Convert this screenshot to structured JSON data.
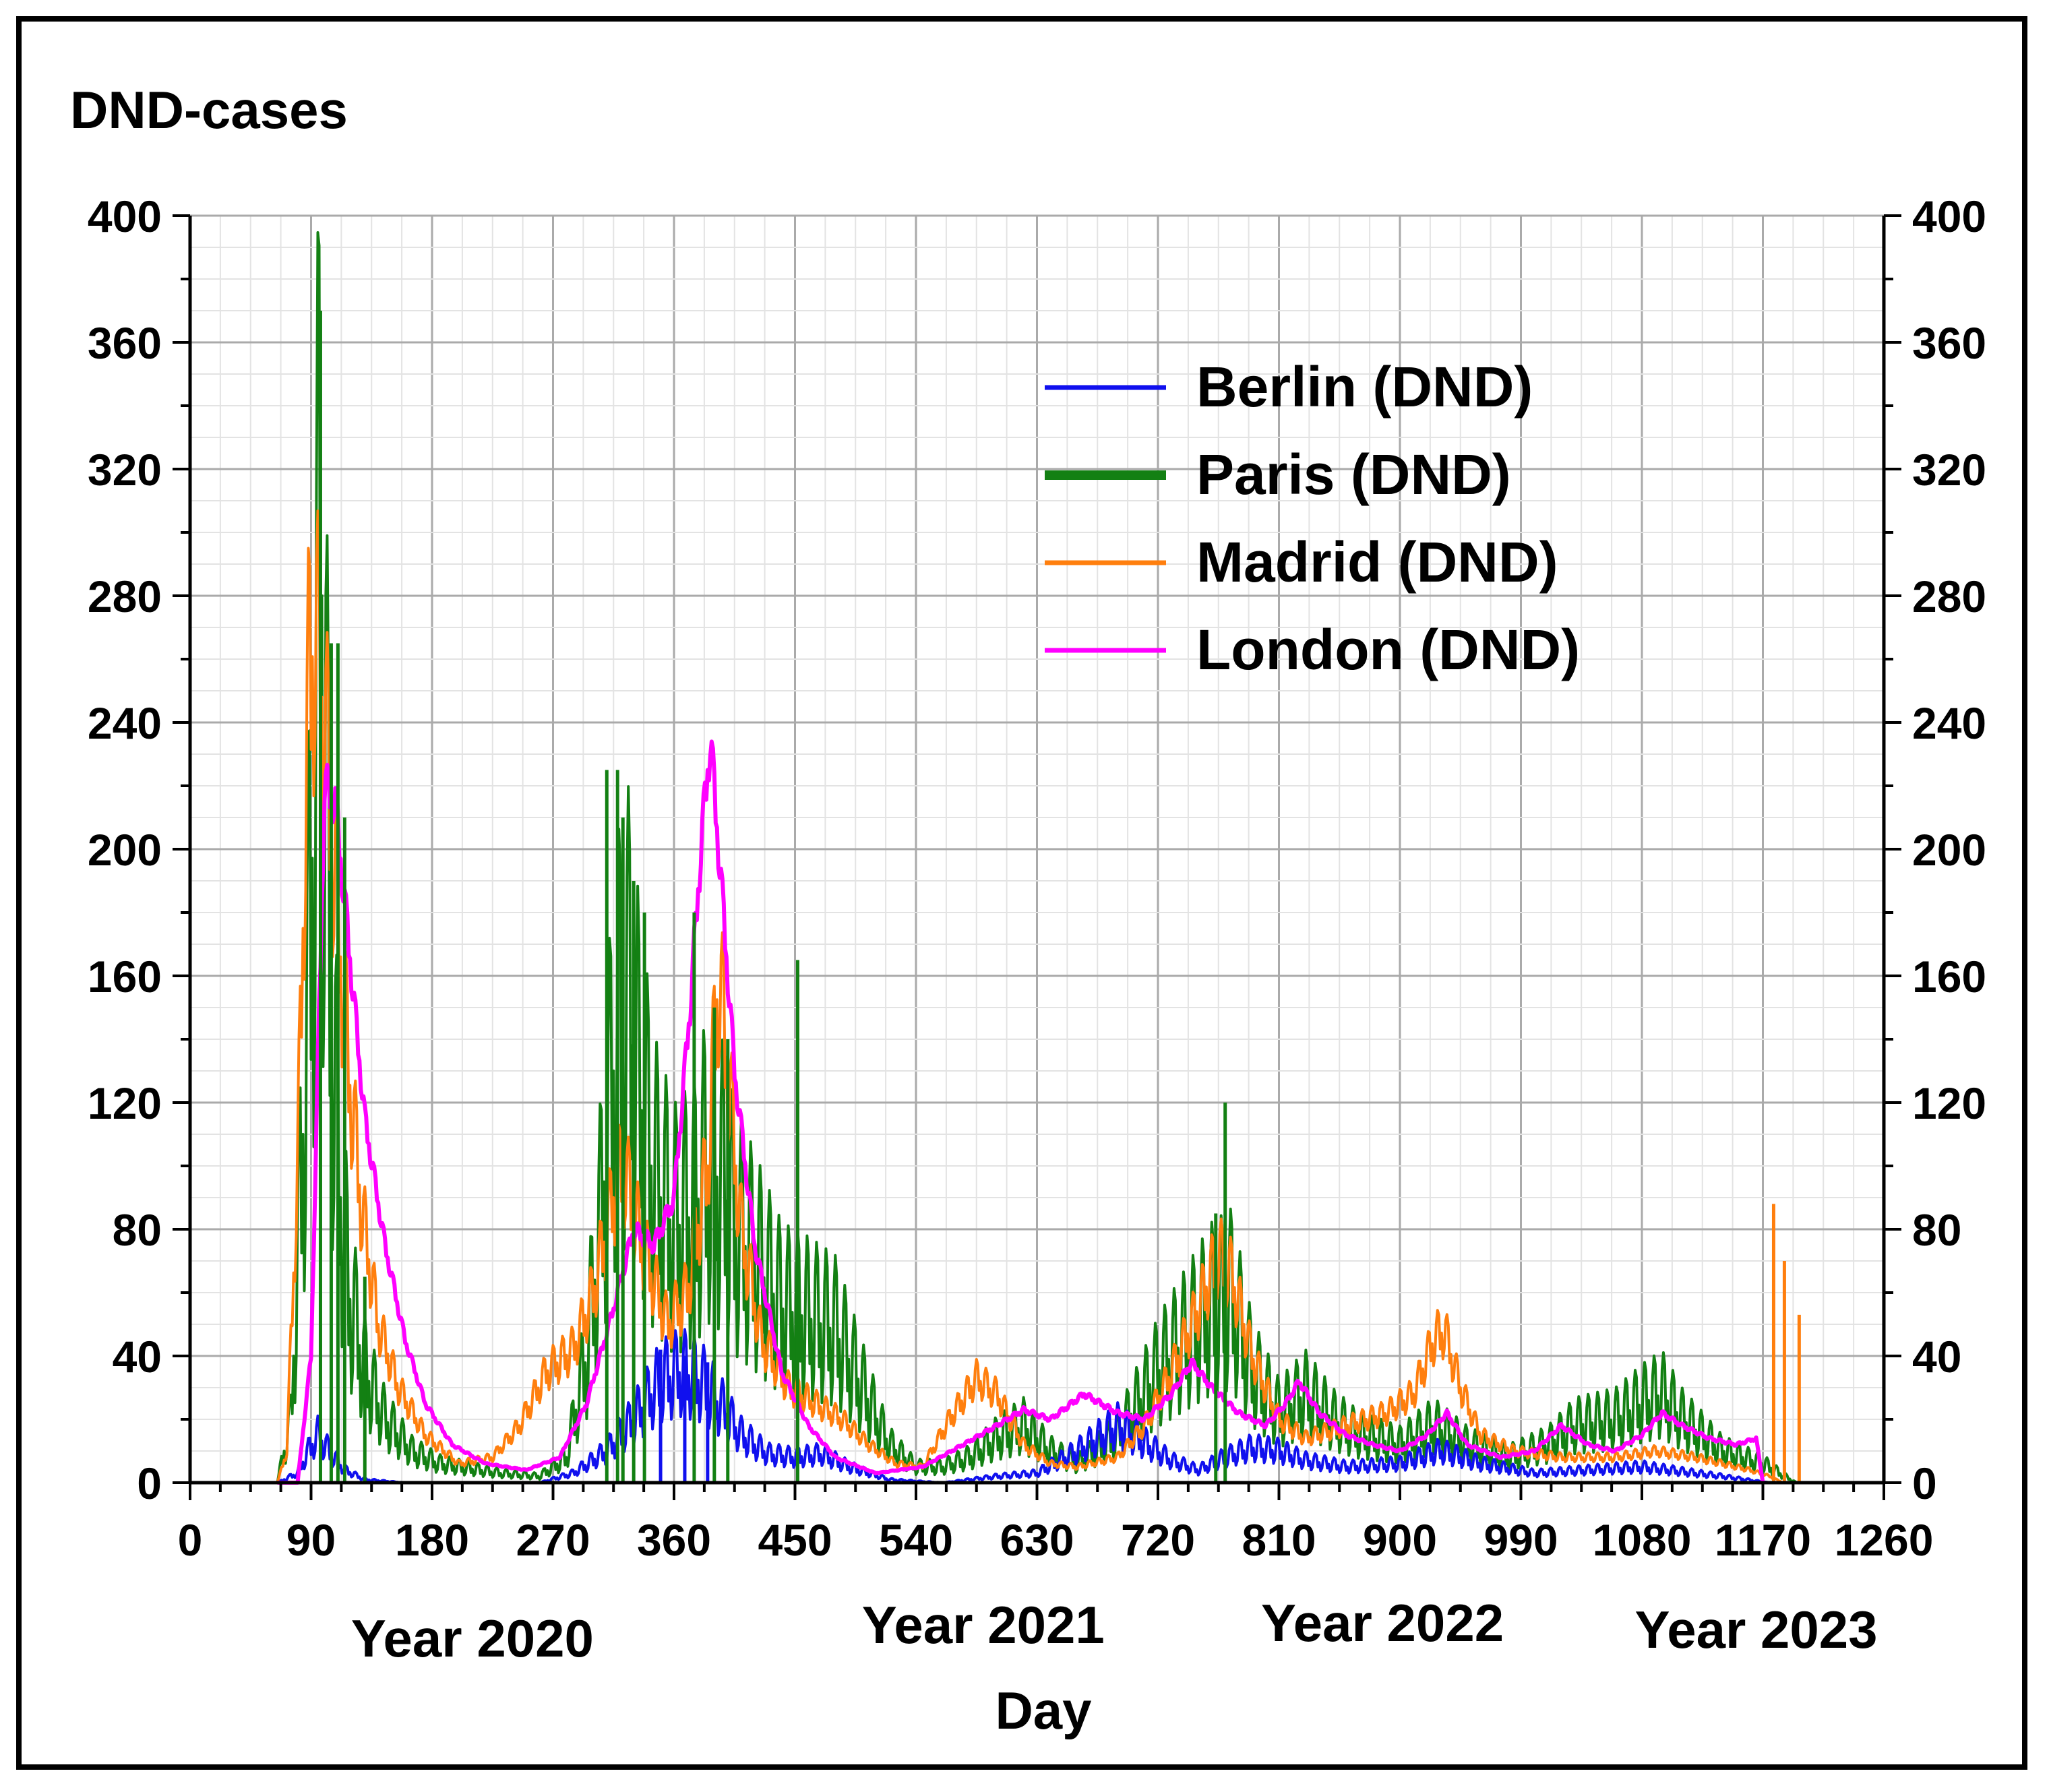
{
  "chart_data": {
    "type": "line",
    "title": "DND-cases",
    "xlabel": "Day",
    "ylabel": "",
    "xlim": [
      0,
      1260
    ],
    "ylim": [
      0,
      400
    ],
    "x_ticks": [
      0,
      90,
      180,
      270,
      360,
      450,
      540,
      630,
      720,
      810,
      900,
      990,
      1080,
      1170,
      1260
    ],
    "y_ticks": [
      0,
      40,
      80,
      120,
      160,
      200,
      240,
      280,
      320,
      360,
      400
    ],
    "grid": true,
    "legend_position": "top-right",
    "year_labels": [
      {
        "text": "Year 2020",
        "day": 210
      },
      {
        "text": "Year 2021",
        "day": 590
      },
      {
        "text": "Year 2022",
        "day": 887
      },
      {
        "text": "Year 2023",
        "day": 1165
      }
    ],
    "series": [
      {
        "name": "Berlin (DND)",
        "color": "#1010ee",
        "oscillation": 0.45,
        "points": [
          [
            65,
            0
          ],
          [
            80,
            3
          ],
          [
            88,
            10
          ],
          [
            95,
            15
          ],
          [
            105,
            9
          ],
          [
            115,
            4
          ],
          [
            130,
            1
          ],
          [
            160,
            0
          ],
          [
            200,
            0
          ],
          [
            260,
            0
          ],
          [
            285,
            3
          ],
          [
            310,
            10
          ],
          [
            330,
            20
          ],
          [
            350,
            32
          ],
          [
            365,
            35
          ],
          [
            380,
            32
          ],
          [
            395,
            24
          ],
          [
            410,
            15
          ],
          [
            430,
            9
          ],
          [
            450,
            8
          ],
          [
            470,
            9
          ],
          [
            490,
            5
          ],
          [
            520,
            1
          ],
          [
            560,
            0
          ],
          [
            600,
            2
          ],
          [
            630,
            3
          ],
          [
            660,
            10
          ],
          [
            690,
            18
          ],
          [
            705,
            14
          ],
          [
            730,
            7
          ],
          [
            750,
            4
          ],
          [
            770,
            8
          ],
          [
            790,
            11
          ],
          [
            810,
            10
          ],
          [
            830,
            7
          ],
          [
            860,
            5
          ],
          [
            900,
            6
          ],
          [
            930,
            10
          ],
          [
            960,
            6
          ],
          [
            1000,
            3
          ],
          [
            1040,
            4
          ],
          [
            1080,
            5
          ],
          [
            1100,
            4
          ],
          [
            1140,
            2
          ],
          [
            1175,
            0
          ],
          [
            1200,
            0
          ]
        ]
      },
      {
        "name": "Paris (DND)",
        "color": "#138013",
        "oscillation": 0.55,
        "points": [
          [
            65,
            0
          ],
          [
            75,
            20
          ],
          [
            85,
            120
          ],
          [
            92,
            210
          ],
          [
            97,
            300
          ],
          [
            103,
            180
          ],
          [
            110,
            100
          ],
          [
            118,
            60
          ],
          [
            130,
            35
          ],
          [
            145,
            20
          ],
          [
            165,
            10
          ],
          [
            185,
            6
          ],
          [
            200,
            5
          ],
          [
            230,
            3
          ],
          [
            260,
            2
          ],
          [
            280,
            8
          ],
          [
            295,
            40
          ],
          [
            305,
            80
          ],
          [
            315,
            130
          ],
          [
            325,
            150
          ],
          [
            335,
            120
          ],
          [
            345,
            95
          ],
          [
            360,
            80
          ],
          [
            375,
            85
          ],
          [
            385,
            100
          ],
          [
            395,
            95
          ],
          [
            405,
            80
          ],
          [
            420,
            70
          ],
          [
            440,
            55
          ],
          [
            460,
            52
          ],
          [
            480,
            48
          ],
          [
            500,
            30
          ],
          [
            520,
            12
          ],
          [
            540,
            5
          ],
          [
            560,
            5
          ],
          [
            580,
            8
          ],
          [
            600,
            14
          ],
          [
            620,
            18
          ],
          [
            640,
            10
          ],
          [
            660,
            6
          ],
          [
            690,
            15
          ],
          [
            720,
            35
          ],
          [
            740,
            45
          ],
          [
            760,
            55
          ],
          [
            775,
            58
          ],
          [
            790,
            35
          ],
          [
            810,
            22
          ],
          [
            830,
            28
          ],
          [
            850,
            20
          ],
          [
            870,
            15
          ],
          [
            900,
            12
          ],
          [
            925,
            18
          ],
          [
            950,
            12
          ],
          [
            980,
            8
          ],
          [
            1010,
            12
          ],
          [
            1030,
            18
          ],
          [
            1060,
            20
          ],
          [
            1080,
            25
          ],
          [
            1095,
            28
          ],
          [
            1110,
            20
          ],
          [
            1140,
            10
          ],
          [
            1170,
            6
          ],
          [
            1195,
            0
          ]
        ]
      },
      {
        "name": "Madrid (DND)",
        "color": "#ff7f0e",
        "oscillation": 0.2,
        "points": [
          [
            65,
            0
          ],
          [
            72,
            10
          ],
          [
            80,
            100
          ],
          [
            88,
            250
          ],
          [
            93,
            268
          ],
          [
            100,
            240
          ],
          [
            108,
            190
          ],
          [
            118,
            130
          ],
          [
            128,
            85
          ],
          [
            140,
            50
          ],
          [
            155,
            30
          ],
          [
            175,
            15
          ],
          [
            200,
            6
          ],
          [
            225,
            8
          ],
          [
            245,
            18
          ],
          [
            265,
            35
          ],
          [
            285,
            42
          ],
          [
            300,
            60
          ],
          [
            315,
            90
          ],
          [
            322,
            100
          ],
          [
            330,
            85
          ],
          [
            340,
            70
          ],
          [
            355,
            50
          ],
          [
            370,
            60
          ],
          [
            385,
            100
          ],
          [
            393,
            160
          ],
          [
            400,
            130
          ],
          [
            410,
            80
          ],
          [
            425,
            45
          ],
          [
            445,
            30
          ],
          [
            465,
            25
          ],
          [
            485,
            20
          ],
          [
            505,
            12
          ],
          [
            525,
            6
          ],
          [
            545,
            5
          ],
          [
            565,
            20
          ],
          [
            585,
            33
          ],
          [
            600,
            28
          ],
          [
            620,
            12
          ],
          [
            640,
            6
          ],
          [
            660,
            5
          ],
          [
            690,
            8
          ],
          [
            710,
            18
          ],
          [
            730,
            35
          ],
          [
            750,
            55
          ],
          [
            765,
            72
          ],
          [
            775,
            65
          ],
          [
            790,
            40
          ],
          [
            810,
            20
          ],
          [
            830,
            14
          ],
          [
            860,
            18
          ],
          [
            890,
            22
          ],
          [
            910,
            28
          ],
          [
            925,
            45
          ],
          [
            933,
            48
          ],
          [
            945,
            30
          ],
          [
            960,
            15
          ],
          [
            985,
            10
          ],
          [
            1020,
            8
          ],
          [
            1060,
            8
          ],
          [
            1090,
            10
          ],
          [
            1120,
            8
          ],
          [
            1160,
            4
          ],
          [
            1175,
            2
          ],
          [
            1185,
            0
          ]
        ]
      },
      {
        "name": "London (DND)",
        "color": "#ff00ff",
        "oscillation": 0.04,
        "points": [
          [
            65,
            0
          ],
          [
            80,
            0
          ],
          [
            90,
            40
          ],
          [
            100,
            220
          ],
          [
            108,
            215
          ],
          [
            118,
            170
          ],
          [
            130,
            115
          ],
          [
            145,
            75
          ],
          [
            160,
            45
          ],
          [
            175,
            25
          ],
          [
            195,
            12
          ],
          [
            220,
            6
          ],
          [
            250,
            4
          ],
          [
            275,
            8
          ],
          [
            295,
            25
          ],
          [
            315,
            55
          ],
          [
            330,
            80
          ],
          [
            345,
            75
          ],
          [
            360,
            90
          ],
          [
            372,
            150
          ],
          [
            380,
            200
          ],
          [
            387,
            235
          ],
          [
            395,
            190
          ],
          [
            405,
            130
          ],
          [
            420,
            75
          ],
          [
            440,
            35
          ],
          [
            460,
            18
          ],
          [
            480,
            8
          ],
          [
            510,
            3
          ],
          [
            545,
            5
          ],
          [
            575,
            12
          ],
          [
            600,
            18
          ],
          [
            620,
            23
          ],
          [
            640,
            20
          ],
          [
            665,
            28
          ],
          [
            690,
            22
          ],
          [
            710,
            20
          ],
          [
            730,
            28
          ],
          [
            745,
            38
          ],
          [
            760,
            30
          ],
          [
            780,
            22
          ],
          [
            800,
            18
          ],
          [
            815,
            25
          ],
          [
            825,
            32
          ],
          [
            840,
            22
          ],
          [
            860,
            15
          ],
          [
            880,
            12
          ],
          [
            900,
            10
          ],
          [
            920,
            15
          ],
          [
            935,
            22
          ],
          [
            950,
            12
          ],
          [
            975,
            8
          ],
          [
            1000,
            10
          ],
          [
            1020,
            18
          ],
          [
            1040,
            12
          ],
          [
            1060,
            10
          ],
          [
            1080,
            15
          ],
          [
            1095,
            22
          ],
          [
            1110,
            18
          ],
          [
            1130,
            14
          ],
          [
            1150,
            12
          ],
          [
            1165,
            14
          ],
          [
            1170,
            0
          ]
        ]
      }
    ],
    "spikes": [
      {
        "series": "Berlin (DND)",
        "points": [
          [
            350,
            42
          ],
          [
            368,
            40
          ],
          [
            385,
            38
          ]
        ]
      },
      {
        "series": "Paris (DND)",
        "points": [
          [
            97,
            370
          ],
          [
            105,
            265
          ],
          [
            110,
            265
          ],
          [
            115,
            210
          ],
          [
            130,
            65
          ],
          [
            310,
            225
          ],
          [
            318,
            225
          ],
          [
            322,
            210
          ],
          [
            330,
            190
          ],
          [
            338,
            180
          ],
          [
            375,
            180
          ],
          [
            390,
            150
          ],
          [
            400,
            140
          ],
          [
            452,
            165
          ],
          [
            770,
            120
          ],
          [
            763,
            85
          ]
        ]
      },
      {
        "series": "Madrid (DND)",
        "points": [
          [
            1178,
            88
          ],
          [
            1186,
            70
          ],
          [
            1197,
            53
          ]
        ]
      }
    ]
  }
}
